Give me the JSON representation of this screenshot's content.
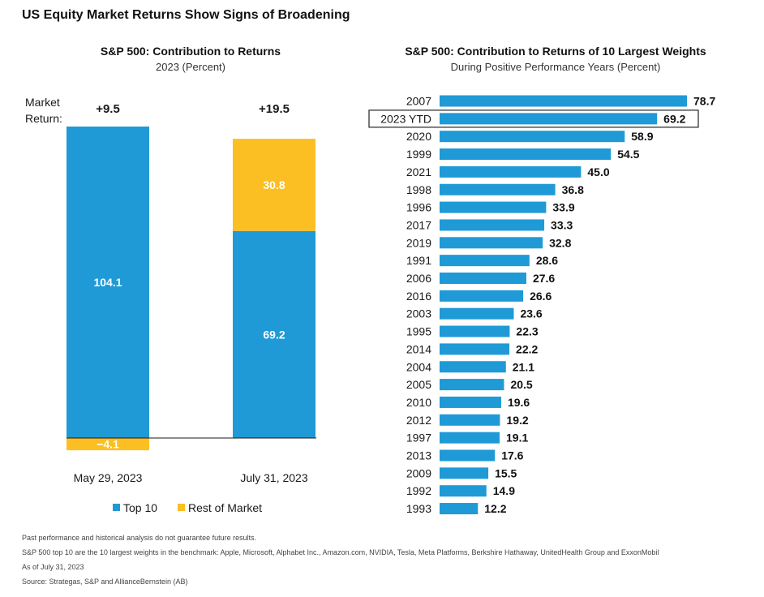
{
  "title": "US Equity Market Returns Show Signs of Broadening",
  "colors": {
    "top10": "#1f9ad6",
    "rest": "#fcbf23",
    "text": "#1a1a1a"
  },
  "chart_data": [
    {
      "type": "bar",
      "stacked": true,
      "title": "S&P 500: Contribution to Returns",
      "subtitle": "2023 (Percent)",
      "categories": [
        "May 29, 2023",
        "July 31, 2023"
      ],
      "series": [
        {
          "name": "Top 10",
          "values": [
            104.1,
            69.2
          ]
        },
        {
          "name": "Rest of Market",
          "values": [
            -4.1,
            30.8
          ]
        }
      ],
      "value_labels": {
        "Top 10": [
          "104.1",
          "69.2"
        ],
        "Rest of Market": [
          "−4.1",
          "30.8"
        ]
      },
      "market_return_label": "Market\nReturn:",
      "market_returns": [
        "+9.5",
        "+19.5"
      ],
      "ylim": [
        -4.1,
        104.1
      ],
      "legend_position": "bottom-center",
      "grid": false
    },
    {
      "type": "bar",
      "orientation": "horizontal",
      "title": "S&P 500: Contribution to Returns of 10 Largest Weights",
      "subtitle": "During Positive Performance Years (Percent)",
      "categories": [
        "2007",
        "2023 YTD",
        "2020",
        "1999",
        "2021",
        "1998",
        "1996",
        "2017",
        "2019",
        "1991",
        "2006",
        "2016",
        "2003",
        "1995",
        "2014",
        "2004",
        "2005",
        "2010",
        "2012",
        "1997",
        "2013",
        "2009",
        "1992",
        "1993"
      ],
      "values": [
        78.7,
        69.2,
        58.9,
        54.5,
        45.0,
        36.8,
        33.9,
        33.3,
        32.8,
        28.6,
        27.6,
        26.6,
        23.6,
        22.3,
        22.2,
        21.1,
        20.5,
        19.6,
        19.2,
        19.1,
        17.6,
        15.5,
        14.9,
        12.2
      ],
      "value_labels": [
        "78.7",
        "69.2",
        "58.9",
        "54.5",
        "45.0",
        "36.8",
        "33.9",
        "33.3",
        "32.8",
        "28.6",
        "27.6",
        "26.6",
        "23.6",
        "22.3",
        "22.2",
        "21.1",
        "20.5",
        "19.6",
        "19.2",
        "19.1",
        "17.6",
        "15.5",
        "14.9",
        "12.2"
      ],
      "highlighted_category": "2023 YTD",
      "grid": false
    }
  ],
  "footnotes": [
    "Past performance and historical analysis do not guarantee future results.",
    "S&P 500 top 10 are the 10 largest weights in the benchmark: Apple, Microsoft, Alphabet Inc., Amazon.com, NVIDIA, Tesla, Meta Platforms, Berkshire Hathaway, UnitedHealth Group and ExxonMobil",
    "As of July 31, 2023",
    "Source: Strategas, S&P and AllianceBernstein (AB)"
  ]
}
